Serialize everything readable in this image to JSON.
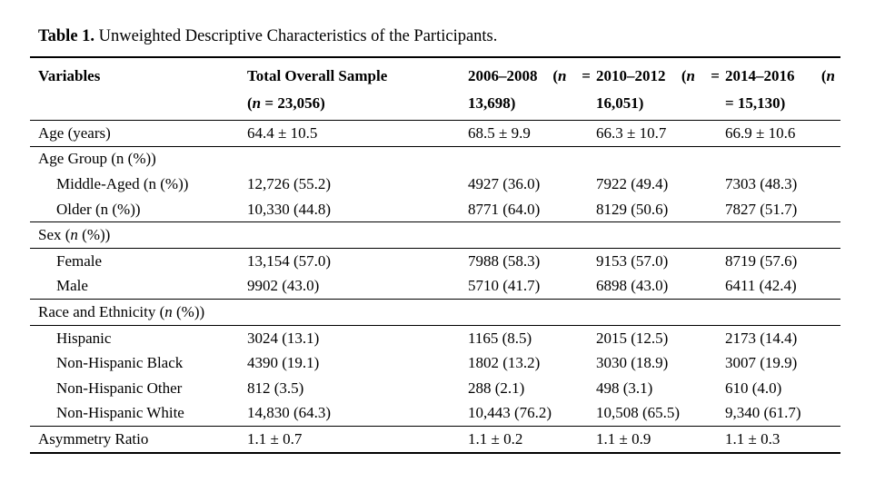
{
  "caption": {
    "label": "Table 1.",
    "text": " Unweighted Descriptive Characteristics of the Participants."
  },
  "table": {
    "columns": [
      {
        "name": "variables",
        "lines": [
          "Variables"
        ]
      },
      {
        "name": "total-overall-sample",
        "lines": [
          "Total Overall Sample",
          "(*n* = 23,056)"
        ]
      },
      {
        "name": "2006-2008",
        "lines": [
          "2006–2008 (*n* =",
          "13,698)"
        ]
      },
      {
        "name": "2010-2012",
        "lines": [
          "2010–2012 (*n* =",
          "16,051)"
        ]
      },
      {
        "name": "2014-2016",
        "lines": [
          "2014–2016 (*n*",
          "= 15,130)"
        ]
      }
    ],
    "rows": [
      {
        "variable": "Age (years)",
        "sub": false,
        "values": [
          "64.4 ± 10.5",
          "68.5 ± 9.9",
          "66.3 ± 10.7",
          "66.9 ± 10.6"
        ]
      },
      {
        "variable": "Age Group (n (%))",
        "sub": false,
        "values": [
          "",
          "",
          "",
          ""
        ]
      },
      {
        "variable": "Middle-Aged (n (%))",
        "sub": true,
        "values": [
          "12,726 (55.2)",
          "4927 (36.0)",
          "7922 (49.4)",
          "7303 (48.3)"
        ]
      },
      {
        "variable": "Older (n (%))",
        "sub": true,
        "values": [
          "10,330 (44.8)",
          "8771 (64.0)",
          "8129 (50.6)",
          "7827 (51.7)"
        ]
      },
      {
        "variable": "Sex (*n* (%))",
        "sub": false,
        "values": [
          "",
          "",
          "",
          ""
        ]
      },
      {
        "variable": "Female",
        "sub": true,
        "values": [
          "13,154 (57.0)",
          "7988 (58.3)",
          "9153 (57.0)",
          "8719 (57.6)"
        ]
      },
      {
        "variable": "Male",
        "sub": true,
        "values": [
          "9902 (43.0)",
          "5710 (41.7)",
          "6898 (43.0)",
          "6411 (42.4)"
        ]
      },
      {
        "variable": "Race and Ethnicity (*n* (%))",
        "sub": false,
        "values": [
          "",
          "",
          "",
          ""
        ]
      },
      {
        "variable": "Hispanic",
        "sub": true,
        "values": [
          "3024 (13.1)",
          "1165 (8.5)",
          "2015 (12.5)",
          "2173 (14.4)"
        ]
      },
      {
        "variable": "Non-Hispanic Black",
        "sub": true,
        "values": [
          "4390 (19.1)",
          "1802 (13.2)",
          "3030 (18.9)",
          "3007 (19.9)"
        ]
      },
      {
        "variable": "Non-Hispanic Other",
        "sub": true,
        "values": [
          "812 (3.5)",
          "288 (2.1)",
          "498 (3.1)",
          "610 (4.0)"
        ]
      },
      {
        "variable": "Non-Hispanic White",
        "sub": true,
        "values": [
          "14,830 (64.3)",
          "10,443 (76.2)",
          "10,508 (65.5)",
          "9,340 (61.7)"
        ]
      },
      {
        "variable": "Asymmetry Ratio",
        "sub": false,
        "values": [
          "1.1 ± 0.7",
          "1.1 ± 0.2",
          "1.1 ± 0.9",
          "1.1 ± 0.3"
        ]
      }
    ]
  }
}
